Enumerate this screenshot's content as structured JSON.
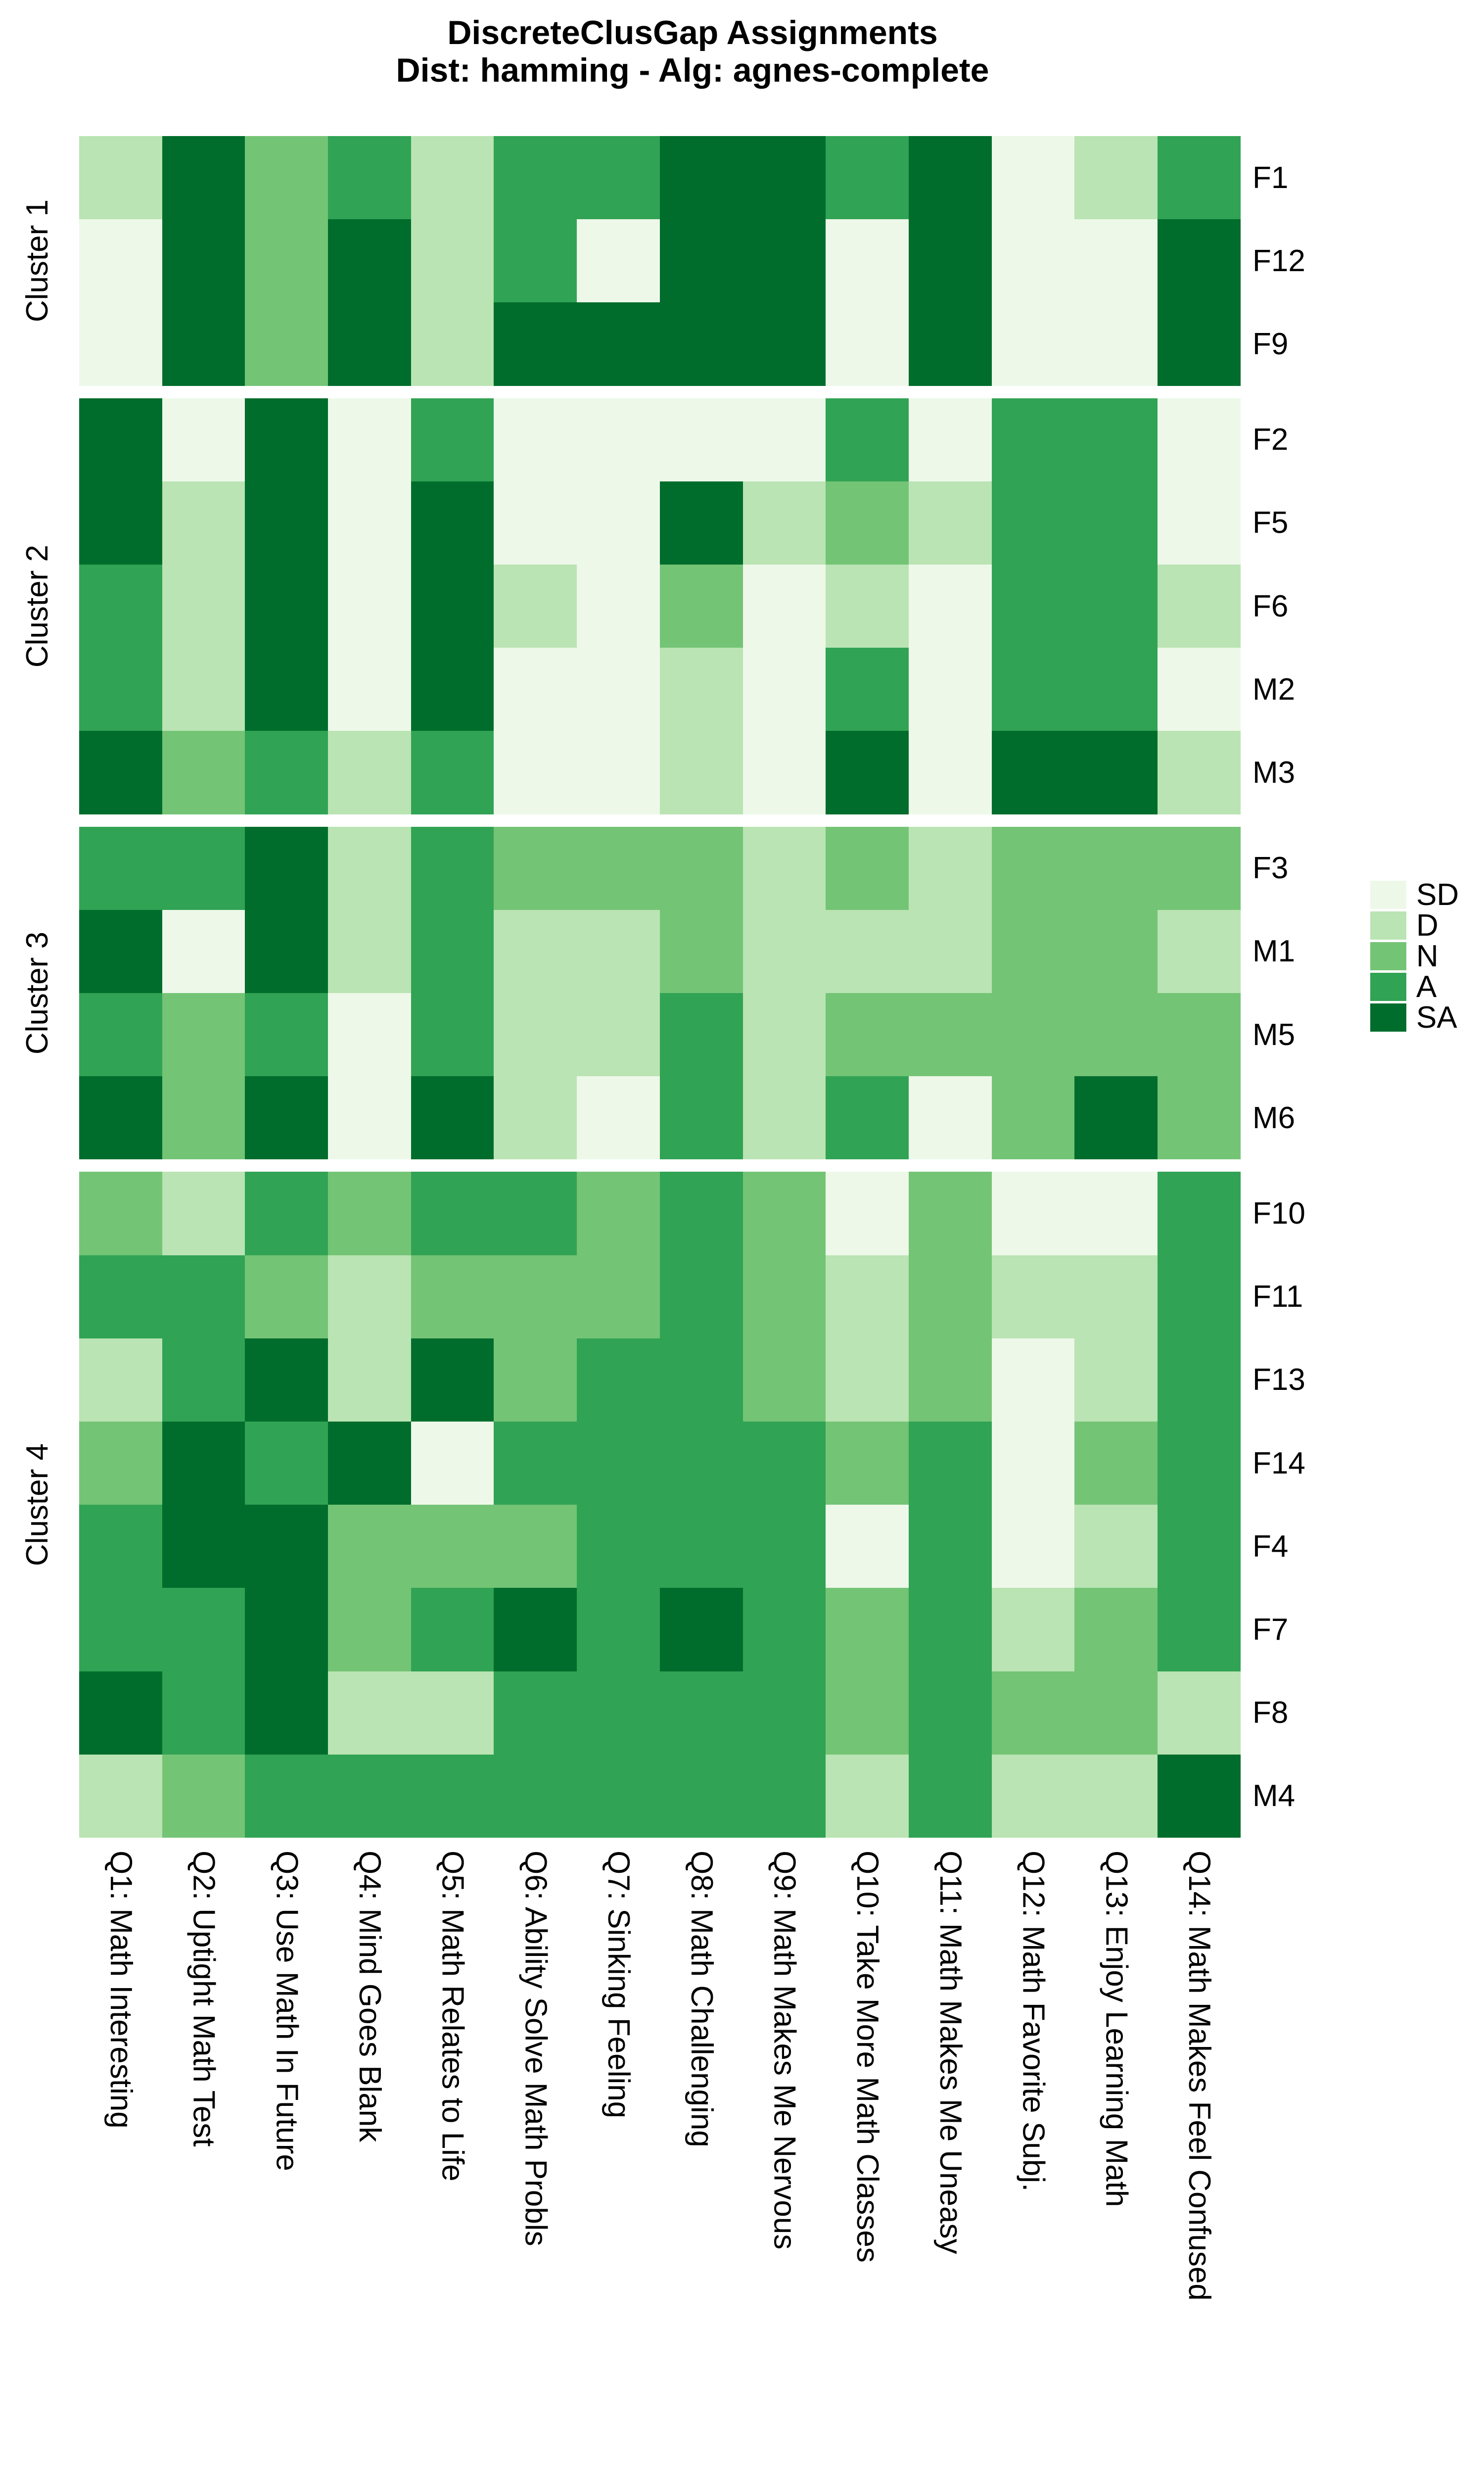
{
  "title": {
    "line1": "DiscreteClusGap Assignments",
    "line2": "Dist: hamming - Alg: agnes-complete"
  },
  "legend": {
    "position": "right",
    "entries": [
      {
        "label": "SD",
        "color": "#EDF8E9"
      },
      {
        "label": "D",
        "color": "#BAE4B3"
      },
      {
        "label": "N",
        "color": "#74C476"
      },
      {
        "label": "A",
        "color": "#31A354"
      },
      {
        "label": "SA",
        "color": "#006D2C"
      }
    ]
  },
  "chart_data": {
    "type": "heatmap",
    "title": "DiscreteClusGap Assignments",
    "subtitle": "Dist: hamming - Alg: agnes-complete",
    "grid": false,
    "legend_position": "right",
    "levels": [
      "SD",
      "D",
      "N",
      "A",
      "SA"
    ],
    "level_colors": {
      "SD": "#EDF8E9",
      "D": "#BAE4B3",
      "N": "#74C476",
      "A": "#31A354",
      "SA": "#006D2C"
    },
    "x_categories": [
      "Q1: Math Interesting",
      "Q2: Uptight Math Test",
      "Q3: Use Math In Future",
      "Q4: Mind Goes Blank",
      "Q5: Math Relates to Life",
      "Q6: Ability Solve Math Probls",
      "Q7: Sinking Feeling",
      "Q8: Math Challenging",
      "Q9: Math Makes Me Nervous",
      "Q10: Take More Math Classes",
      "Q11: Math Makes Me Uneasy",
      "Q12: Math Favorite Subj.",
      "Q13: Enjoy Learning Math",
      "Q14: Math Makes Feel Confused"
    ],
    "row_clusters": [
      {
        "name": "Cluster 1",
        "rows": [
          "F1",
          "F12",
          "F9"
        ]
      },
      {
        "name": "Cluster 2",
        "rows": [
          "F2",
          "F5",
          "F6",
          "M2",
          "M3"
        ]
      },
      {
        "name": "Cluster 3",
        "rows": [
          "F3",
          "M1",
          "M5",
          "M6"
        ]
      },
      {
        "name": "Cluster 4",
        "rows": [
          "F10",
          "F11",
          "F13",
          "F14",
          "F4",
          "F7",
          "F8",
          "M4"
        ]
      }
    ],
    "values": {
      "F1": [
        "D",
        "SA",
        "N",
        "A",
        "D",
        "A",
        "A",
        "SA",
        "SA",
        "A",
        "SA",
        "SD",
        "D",
        "A"
      ],
      "F12": [
        "SD",
        "SA",
        "N",
        "SA",
        "D",
        "A",
        "SD",
        "SA",
        "SA",
        "SD",
        "SA",
        "SD",
        "SD",
        "SA"
      ],
      "F9": [
        "SD",
        "SA",
        "N",
        "SA",
        "D",
        "SA",
        "SA",
        "SA",
        "SA",
        "SD",
        "SA",
        "SD",
        "SD",
        "SA"
      ],
      "F2": [
        "SA",
        "SD",
        "SA",
        "SD",
        "A",
        "SD",
        "SD",
        "SD",
        "SD",
        "A",
        "SD",
        "A",
        "A",
        "SD"
      ],
      "F5": [
        "SA",
        "D",
        "SA",
        "SD",
        "SA",
        "SD",
        "SD",
        "SA",
        "D",
        "N",
        "D",
        "A",
        "A",
        "SD"
      ],
      "F6": [
        "A",
        "D",
        "SA",
        "SD",
        "SA",
        "D",
        "SD",
        "N",
        "SD",
        "D",
        "SD",
        "A",
        "A",
        "D"
      ],
      "M2": [
        "A",
        "D",
        "SA",
        "SD",
        "SA",
        "SD",
        "SD",
        "D",
        "SD",
        "A",
        "SD",
        "A",
        "A",
        "SD"
      ],
      "M3": [
        "SA",
        "N",
        "A",
        "D",
        "A",
        "SD",
        "SD",
        "D",
        "SD",
        "SA",
        "SD",
        "SA",
        "SA",
        "D"
      ],
      "F3": [
        "A",
        "A",
        "SA",
        "D",
        "A",
        "N",
        "N",
        "N",
        "D",
        "N",
        "D",
        "N",
        "N",
        "N"
      ],
      "M1": [
        "SA",
        "SD",
        "SA",
        "D",
        "A",
        "D",
        "D",
        "N",
        "D",
        "D",
        "D",
        "N",
        "N",
        "D"
      ],
      "M5": [
        "A",
        "N",
        "A",
        "SD",
        "A",
        "D",
        "D",
        "A",
        "D",
        "N",
        "N",
        "N",
        "N",
        "N"
      ],
      "M6": [
        "SA",
        "N",
        "SA",
        "SD",
        "SA",
        "D",
        "SD",
        "A",
        "D",
        "A",
        "SD",
        "N",
        "SA",
        "N"
      ],
      "F10": [
        "N",
        "D",
        "A",
        "N",
        "A",
        "A",
        "N",
        "A",
        "N",
        "SD",
        "N",
        "SD",
        "SD",
        "A"
      ],
      "F11": [
        "A",
        "A",
        "N",
        "D",
        "N",
        "N",
        "N",
        "A",
        "N",
        "D",
        "N",
        "D",
        "D",
        "A"
      ],
      "F13": [
        "D",
        "A",
        "SA",
        "D",
        "SA",
        "N",
        "A",
        "A",
        "N",
        "D",
        "N",
        "SD",
        "D",
        "A"
      ],
      "F14": [
        "N",
        "SA",
        "A",
        "SA",
        "SD",
        "A",
        "A",
        "A",
        "A",
        "N",
        "A",
        "SD",
        "N",
        "A"
      ],
      "F4": [
        "A",
        "SA",
        "SA",
        "N",
        "N",
        "N",
        "A",
        "A",
        "A",
        "SD",
        "A",
        "SD",
        "D",
        "A"
      ],
      "F7": [
        "A",
        "A",
        "SA",
        "N",
        "A",
        "SA",
        "A",
        "SA",
        "A",
        "N",
        "A",
        "D",
        "N",
        "A"
      ],
      "F8": [
        "SA",
        "A",
        "SA",
        "D",
        "D",
        "A",
        "A",
        "A",
        "A",
        "N",
        "A",
        "N",
        "N",
        "D"
      ],
      "M4": [
        "D",
        "N",
        "A",
        "A",
        "A",
        "A",
        "A",
        "A",
        "A",
        "D",
        "A",
        "D",
        "D",
        "SA"
      ]
    }
  }
}
